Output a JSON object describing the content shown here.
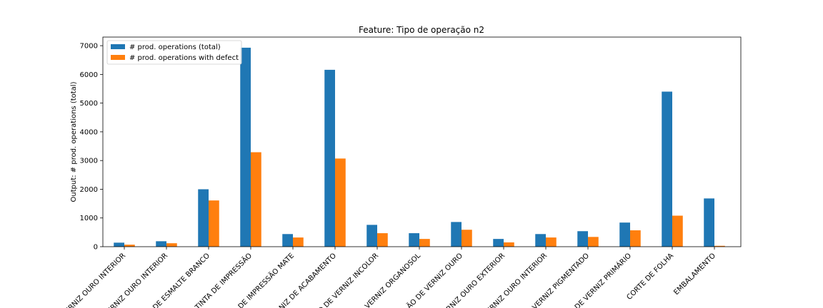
{
  "chart_data": {
    "type": "bar",
    "title": "Feature: Tipo de operação n2",
    "xlabel": "",
    "ylabel": "Output: # prod. operations (total)",
    "ylim": [
      0,
      7300
    ],
    "yticks": [
      0,
      1000,
      2000,
      3000,
      4000,
      5000,
      6000,
      7000
    ],
    "grid": false,
    "legend_position": "top-left",
    "categories": [
      "VERNIZ OURO INTERIOR",
      "VERNIZ OURO INTERIOR",
      "DE ESMALTE BRANCO",
      "TINTA DE IMPRESSÃO",
      "DE IMPRESSÃO MATE",
      "NIZ DE ACABAMENTO",
      "O DE VERNIZ INCOLOR",
      "VERNIZ ORGANOSOL",
      "ÃO DE VERNIZ OURO",
      "RNIZ OURO EXTERIOR",
      "ERNIZ OURO INTERIOR",
      "VERNIZ PIGMENTADO",
      "DE VERNIZ PRIMÁRIO",
      "CORTE DE FOLHA",
      "EMBALAMENTO"
    ],
    "series": [
      {
        "name": "# prod. operations (total)",
        "color": "#1f77b4",
        "values": [
          140,
          190,
          2000,
          6930,
          440,
          6160,
          760,
          470,
          860,
          270,
          440,
          540,
          840,
          5400,
          1680
        ]
      },
      {
        "name": "# prod. operations with defect",
        "color": "#ff7f0e",
        "values": [
          70,
          120,
          1610,
          3290,
          320,
          3070,
          470,
          270,
          590,
          150,
          320,
          340,
          570,
          1080,
          30
        ]
      }
    ]
  }
}
